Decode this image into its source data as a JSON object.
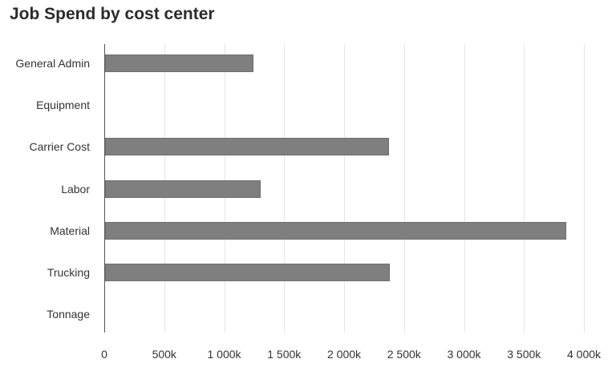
{
  "chart_data": {
    "type": "bar",
    "orientation": "horizontal",
    "title": "Job Spend by cost center",
    "xlabel": "",
    "ylabel": "",
    "categories": [
      "General Admin",
      "Equipment",
      "Carrier Cost",
      "Labor",
      "Material",
      "Trucking",
      "Tonnage"
    ],
    "values": [
      1240000,
      0,
      2370000,
      1300000,
      3845000,
      2375000,
      0
    ],
    "xlim": [
      0,
      4000000
    ],
    "xticks": [
      "0",
      "500k",
      "1 000k",
      "1 500k",
      "2 000k",
      "2 500k",
      "3 000k",
      "3 500k",
      "4 000k"
    ],
    "grid": true,
    "legend": null,
    "bar_color": "#7f7f7f"
  }
}
